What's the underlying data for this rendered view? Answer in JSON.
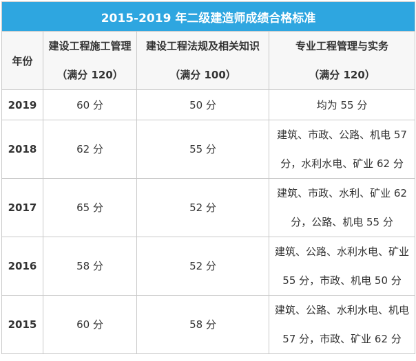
{
  "table": {
    "title": "2015-2019 年二级建造师成绩合格标准",
    "year_header": "年份",
    "columns": [
      {
        "name": "建设工程施工管理",
        "full_score": "（满分 120）"
      },
      {
        "name": "建设工程法规及相关知识",
        "full_score": "（满分 100）"
      },
      {
        "name": "专业工程管理与实务",
        "full_score": "（满分 120）"
      }
    ],
    "rows": [
      {
        "year": "2019",
        "cells": [
          [
            "60 分"
          ],
          [
            "50 分"
          ],
          [
            "均为 55 分"
          ]
        ]
      },
      {
        "year": "2018",
        "cells": [
          [
            "62 分"
          ],
          [
            "55 分"
          ],
          [
            "建筑、市政、公路、机电 57",
            "分，水利水电、矿业 62 分"
          ]
        ]
      },
      {
        "year": "2017",
        "cells": [
          [
            "65 分"
          ],
          [
            "52 分"
          ],
          [
            "建筑、市政、水利、矿业 62",
            "分，公路、机电 55 分"
          ]
        ]
      },
      {
        "year": "2016",
        "cells": [
          [
            "58 分"
          ],
          [
            "52 分"
          ],
          [
            "建筑、公路、水利水电、矿业",
            "55 分，市政、机电 50 分"
          ]
        ]
      },
      {
        "year": "2015",
        "cells": [
          [
            "60 分"
          ],
          [
            "58 分"
          ],
          [
            "建筑、公路、水利水电、机电",
            "57 分，市政、矿业 62 分"
          ]
        ]
      }
    ]
  }
}
